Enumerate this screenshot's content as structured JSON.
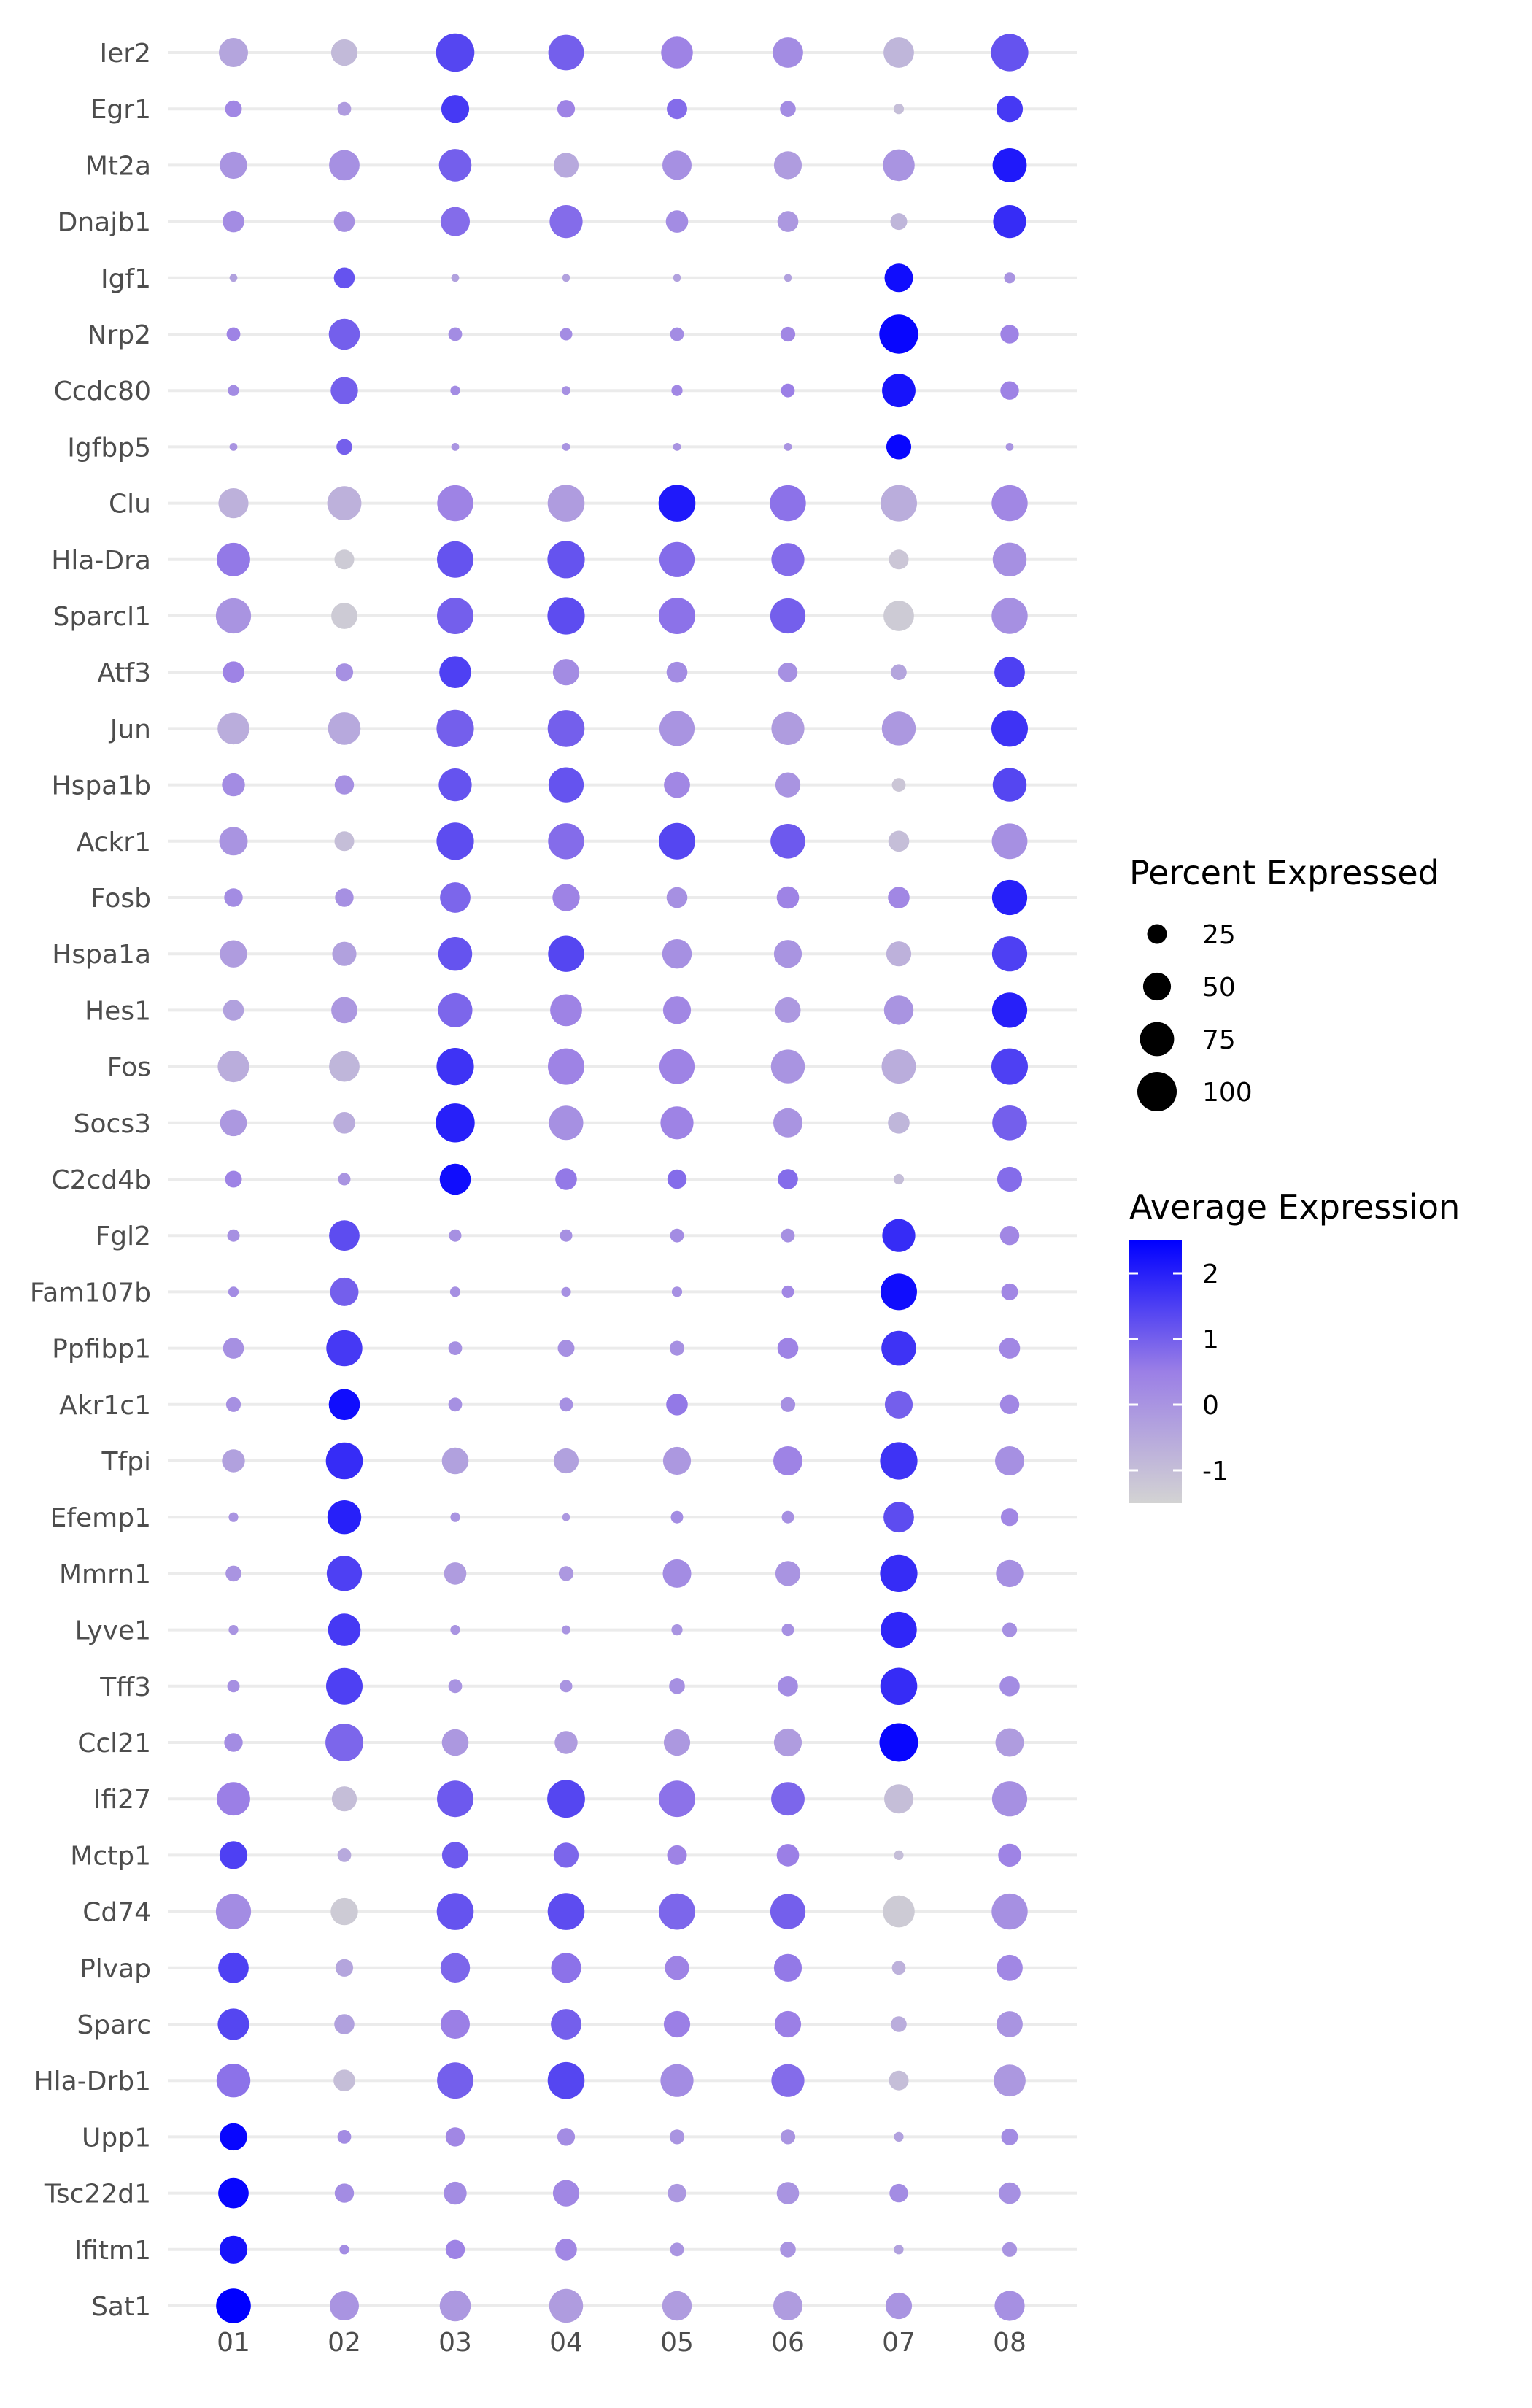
{
  "chart_data": {
    "type": "scatter",
    "subtype": "dot-plot",
    "title": "",
    "xlabel": "",
    "ylabel": "",
    "clusters": [
      "01",
      "02",
      "03",
      "04",
      "05",
      "06",
      "07",
      "08"
    ],
    "genes": [
      "Ier2",
      "Egr1",
      "Mt2a",
      "Dnajb1",
      "Igf1",
      "Nrp2",
      "Ccdc80",
      "Igfbp5",
      "Clu",
      "Hla-Dra",
      "Sparcl1",
      "Atf3",
      "Jun",
      "Hspa1b",
      "Ackr1",
      "Fosb",
      "Hspa1a",
      "Hes1",
      "Fos",
      "Socs3",
      "C2cd4b",
      "Fgl2",
      "Fam107b",
      "Ppfibp1",
      "Akr1c1",
      "Tfpi",
      "Efemp1",
      "Mmrn1",
      "Lyve1",
      "Tff3",
      "Ccl21",
      "Ifi27",
      "Mctp1",
      "Cd74",
      "Plvap",
      "Sparc",
      "Hla-Drb1",
      "Upp1",
      "Tsc22d1",
      "Ifitm1",
      "Sat1"
    ],
    "pct_expressed": [
      [
        55,
        45,
        95,
        82,
        65,
        60,
        60,
        90
      ],
      [
        18,
        12,
        50,
        20,
        27,
        16,
        7,
        45
      ],
      [
        48,
        60,
        68,
        40,
        55,
        50,
        65,
        75
      ],
      [
        30,
        28,
        55,
        70,
        32,
        28,
        18,
        70
      ],
      [
        4,
        28,
        4,
        4,
        4,
        4,
        52,
        8
      ],
      [
        12,
        62,
        12,
        10,
        12,
        14,
        98,
        22
      ],
      [
        8,
        48,
        6,
        5,
        8,
        12,
        72,
        22
      ],
      [
        4,
        16,
        4,
        4,
        4,
        4,
        40,
        4
      ],
      [
        58,
        75,
        84,
        88,
        88,
        84,
        86,
        84
      ],
      [
        72,
        25,
        86,
        90,
        80,
        70,
        25,
        74
      ],
      [
        80,
        44,
        86,
        90,
        86,
        80,
        60,
        84
      ],
      [
        30,
        20,
        65,
        45,
        28,
        24,
        16,
        60
      ],
      [
        65,
        68,
        90,
        88,
        80,
        70,
        74,
        86
      ],
      [
        34,
        24,
        70,
        80,
        44,
        40,
        12,
        74
      ],
      [
        52,
        25,
        90,
        84,
        86,
        78,
        28,
        82
      ],
      [
        22,
        22,
        60,
        48,
        28,
        32,
        30,
        80
      ],
      [
        48,
        38,
        74,
        84,
        56,
        50,
        40,
        80
      ],
      [
        28,
        44,
        76,
        66,
        50,
        42,
        56,
        80
      ],
      [
        64,
        60,
        90,
        86,
        80,
        74,
        76,
        86
      ],
      [
        46,
        30,
        98,
        76,
        70,
        55,
        30,
        78
      ],
      [
        18,
        10,
        62,
        30,
        24,
        26,
        7,
        40
      ],
      [
        10,
        60,
        10,
        10,
        12,
        12,
        70,
        24
      ],
      [
        7,
        52,
        7,
        6,
        7,
        10,
        86,
        18
      ],
      [
        28,
        84,
        12,
        18,
        14,
        28,
        78,
        28
      ],
      [
        14,
        62,
        12,
        12,
        30,
        14,
        50,
        24
      ],
      [
        34,
        88,
        46,
        40,
        50,
        55,
        90,
        55
      ],
      [
        6,
        74,
        6,
        4,
        10,
        10,
        60,
        20
      ],
      [
        16,
        80,
        32,
        14,
        52,
        40,
        90,
        48
      ],
      [
        6,
        68,
        6,
        5,
        8,
        10,
        84,
        14
      ],
      [
        10,
        86,
        12,
        10,
        16,
        26,
        88,
        26
      ],
      [
        22,
        92,
        46,
        34,
        45,
        50,
        96,
        52
      ],
      [
        72,
        40,
        86,
        92,
        85,
        72,
        55,
        80
      ],
      [
        50,
        12,
        45,
        40,
        25,
        32,
        6,
        34
      ],
      [
        80,
        48,
        88,
        88,
        85,
        80,
        65,
        84
      ],
      [
        60,
        20,
        56,
        58,
        38,
        50,
        12,
        44
      ],
      [
        64,
        26,
        55,
        60,
        45,
        45,
        16,
        44
      ],
      [
        74,
        30,
        85,
        88,
        70,
        70,
        25,
        66
      ],
      [
        48,
        12,
        24,
        20,
        14,
        14,
        6,
        18
      ],
      [
        60,
        24,
        34,
        45,
        22,
        32,
        22,
        30
      ],
      [
        50,
        6,
        24,
        30,
        12,
        16,
        6,
        14
      ],
      [
        78,
        55,
        62,
        74,
        56,
        55,
        45,
        58
      ]
    ],
    "avg_expression": [
      [
        -0.4,
        -0.9,
        1.4,
        1.0,
        0.4,
        0.2,
        -0.8,
        1.2
      ],
      [
        0.3,
        -0.2,
        1.6,
        0.4,
        0.8,
        0.2,
        -1.0,
        1.6
      ],
      [
        0.0,
        0.1,
        1.0,
        -0.5,
        0.1,
        -0.2,
        0.0,
        2.1
      ],
      [
        0.2,
        0.1,
        0.8,
        0.8,
        0.2,
        -0.1,
        -0.8,
        1.8
      ],
      [
        -0.3,
        1.2,
        -0.3,
        -0.3,
        -0.3,
        -0.3,
        2.3,
        0.0
      ],
      [
        0.4,
        1.0,
        0.2,
        0.2,
        0.2,
        0.3,
        2.4,
        0.4
      ],
      [
        0.2,
        1.0,
        0.2,
        0.1,
        0.3,
        0.5,
        2.2,
        0.4
      ],
      [
        0.0,
        1.0,
        0.0,
        0.0,
        0.0,
        0.0,
        2.4,
        0.0
      ],
      [
        -0.7,
        -0.7,
        0.4,
        -0.2,
        2.1,
        0.7,
        -0.6,
        0.3
      ],
      [
        0.6,
        -1.3,
        1.2,
        1.2,
        0.8,
        0.8,
        -1.2,
        0.1
      ],
      [
        0.0,
        -1.3,
        1.0,
        1.3,
        0.7,
        1.0,
        -1.3,
        0.1
      ],
      [
        0.4,
        0.1,
        1.5,
        0.2,
        0.2,
        0.1,
        -0.4,
        1.5
      ],
      [
        -0.6,
        -0.5,
        1.0,
        1.0,
        0.0,
        -0.2,
        -0.1,
        1.7
      ],
      [
        0.2,
        0.1,
        1.2,
        1.2,
        0.3,
        0.0,
        -1.2,
        1.4
      ],
      [
        0.0,
        -1.0,
        1.3,
        0.8,
        1.4,
        1.1,
        -1.0,
        0.1
      ],
      [
        0.2,
        0.1,
        0.9,
        0.4,
        0.1,
        0.4,
        0.3,
        2.0
      ],
      [
        -0.2,
        -0.3,
        1.2,
        1.4,
        0.1,
        0.0,
        -0.7,
        1.5
      ],
      [
        -0.3,
        -0.1,
        0.9,
        0.4,
        0.3,
        -0.1,
        0.0,
        2.0
      ],
      [
        -0.6,
        -0.8,
        1.7,
        0.4,
        0.4,
        0.0,
        -0.6,
        1.5
      ],
      [
        -0.1,
        -0.6,
        2.0,
        0.1,
        0.4,
        0.0,
        -0.8,
        1.0
      ],
      [
        0.4,
        0.0,
        2.3,
        0.6,
        0.8,
        0.8,
        -1.0,
        0.8
      ],
      [
        0.1,
        1.3,
        0.1,
        0.1,
        0.2,
        0.1,
        1.8,
        0.3
      ],
      [
        0.2,
        1.0,
        0.1,
        0.1,
        0.1,
        0.3,
        2.3,
        0.3
      ],
      [
        0.1,
        1.6,
        0.1,
        0.1,
        0.1,
        0.4,
        1.7,
        0.3
      ],
      [
        0.1,
        2.3,
        0.1,
        0.1,
        0.6,
        0.1,
        1.0,
        0.3
      ],
      [
        -0.3,
        1.8,
        -0.3,
        -0.3,
        -0.1,
        0.4,
        1.7,
        0.1
      ],
      [
        0.0,
        2.0,
        0.0,
        -0.1,
        0.2,
        0.1,
        1.3,
        0.3
      ],
      [
        0.0,
        1.5,
        -0.2,
        -0.1,
        0.2,
        0.0,
        1.8,
        0.1
      ],
      [
        0.0,
        1.6,
        0.0,
        0.0,
        0.0,
        0.1,
        1.9,
        0.1
      ],
      [
        0.1,
        1.5,
        0.0,
        0.0,
        0.1,
        0.2,
        1.8,
        0.2
      ],
      [
        0.2,
        0.9,
        -0.1,
        -0.2,
        -0.1,
        -0.2,
        2.4,
        -0.2
      ],
      [
        0.5,
        -1.0,
        1.1,
        1.4,
        0.7,
        0.9,
        -1.0,
        0.1
      ],
      [
        1.5,
        -0.5,
        1.1,
        0.9,
        0.4,
        0.5,
        -1.0,
        0.4
      ],
      [
        0.2,
        -1.3,
        1.2,
        1.3,
        0.9,
        1.0,
        -1.3,
        0.1
      ],
      [
        1.5,
        -0.4,
        0.9,
        0.7,
        0.4,
        0.6,
        -0.7,
        0.3
      ],
      [
        1.4,
        -0.3,
        0.5,
        1.0,
        0.5,
        0.5,
        -0.6,
        0.0
      ],
      [
        0.7,
        -1.0,
        1.0,
        1.4,
        0.2,
        0.8,
        -1.0,
        -0.1
      ],
      [
        2.4,
        0.2,
        0.3,
        0.2,
        0.0,
        0.0,
        -0.3,
        0.2
      ],
      [
        2.4,
        0.2,
        0.2,
        0.3,
        -0.1,
        0.0,
        0.2,
        0.1
      ],
      [
        2.2,
        0.2,
        0.4,
        0.3,
        0.0,
        0.0,
        -0.3,
        0.0
      ],
      [
        2.5,
        0.0,
        -0.1,
        -0.2,
        -0.2,
        -0.2,
        0.0,
        0.1
      ]
    ],
    "size_legend": {
      "title": "Percent Expressed",
      "values": [
        25,
        50,
        75,
        100
      ],
      "labels": [
        "25",
        "50",
        "75",
        "100"
      ]
    },
    "color_legend": {
      "title": "Average Expression",
      "range": [
        -1.5,
        2.5
      ],
      "ticks": [
        2,
        1,
        0,
        -1
      ],
      "labels": [
        "2",
        "1",
        "0",
        "-1"
      ],
      "colors": {
        "low": "#d3d3d3",
        "mid": "#9b7fe6",
        "high": "#0000ff"
      }
    },
    "grid": true,
    "legend_position": "right"
  }
}
